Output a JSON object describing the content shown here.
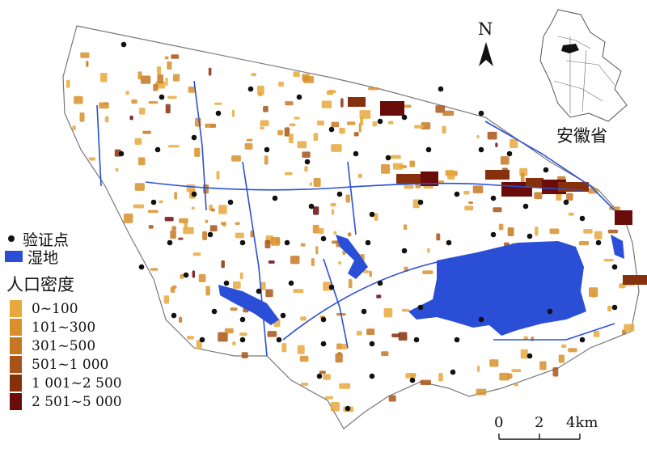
{
  "legend": {
    "point_label": "验证点",
    "wetland_label": "湿地",
    "density_title": "人口密度",
    "density_classes": [
      {
        "label": "0~100",
        "color": "#e8a93c"
      },
      {
        "label": "101~300",
        "color": "#d8902c"
      },
      {
        "label": "301~500",
        "color": "#c67723"
      },
      {
        "label": "501~1 000",
        "color": "#a85418"
      },
      {
        "label": "1 001~2 500",
        "color": "#86300e"
      },
      {
        "label": "2 501~5 000",
        "color": "#6a0c0a"
      }
    ]
  },
  "inset": {
    "province_label": "安徽省"
  },
  "north_arrow": {
    "label": "N"
  },
  "scale_bar": {
    "ticks": [
      "0",
      "2",
      "4km"
    ]
  },
  "colors": {
    "wetland": "#2a4fd6",
    "points": "#111111",
    "boundary": "#777777"
  }
}
